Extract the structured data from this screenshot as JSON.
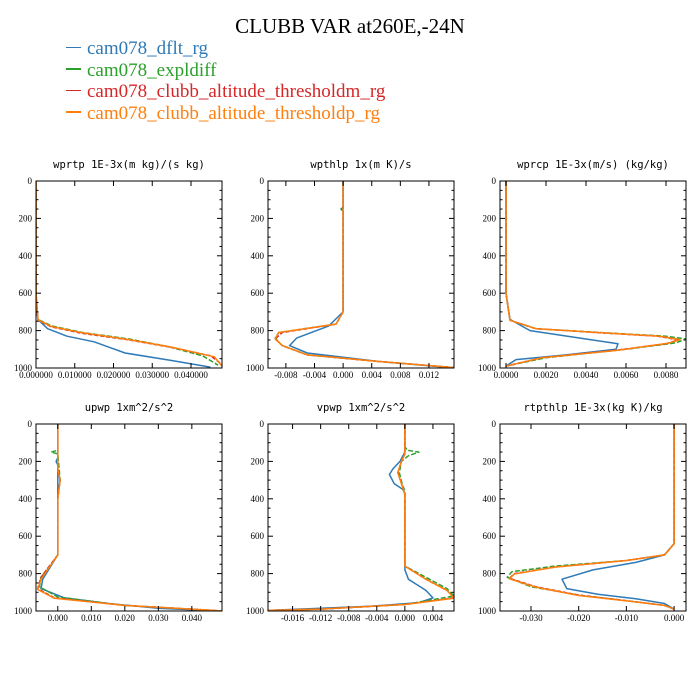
{
  "title": "CLUBB VAR at260E,-24N",
  "legend": [
    {
      "label": "cam078_dflt_rg",
      "color": "#2f7ab6",
      "dash": "solid"
    },
    {
      "label": "cam078_expldiff",
      "color": "#2ca02c",
      "dash": "dashed"
    },
    {
      "label": "cam078_clubb_altitude_thresholdm_rg",
      "color": "#d62728",
      "dash": "dashed"
    },
    {
      "label": "cam078_clubb_altitude_thresholdp_rg",
      "color": "#ff7f0e",
      "dash": "solid"
    }
  ],
  "chart_data": [
    {
      "type": "line",
      "title": "wprtp  1E-3x(m kg)/(s kg)",
      "xlim": [
        0,
        0.048
      ],
      "ylim": [
        0,
        1000
      ],
      "y_inverted": true,
      "xticks": [
        0,
        0.01,
        0.02,
        0.03,
        0.04
      ],
      "xtick_labels": [
        "0.000000",
        "0.010000",
        "0.020000",
        "0.030000",
        "0.040000"
      ],
      "yticks": [
        0,
        200,
        400,
        600,
        800,
        1000
      ],
      "series": [
        {
          "name": "cam078_dflt_rg",
          "x": [
            0,
            0,
            0.0005,
            0.003,
            0.008,
            0.015,
            0.019,
            0.023,
            0.035,
            0.045
          ],
          "y": [
            0,
            600,
            740,
            790,
            830,
            860,
            890,
            920,
            960,
            995
          ]
        },
        {
          "name": "cam078_expldiff",
          "x": [
            0,
            0,
            0.0005,
            0.004,
            0.012,
            0.024,
            0.034,
            0.043,
            0.047
          ],
          "y": [
            0,
            600,
            740,
            775,
            810,
            845,
            885,
            935,
            985
          ]
        },
        {
          "name": "cam078_clubb_altitude_thresholdm_rg",
          "x": [
            0,
            0,
            0.0005,
            0.004,
            0.012,
            0.024,
            0.035,
            0.045,
            0.048
          ],
          "y": [
            0,
            600,
            745,
            780,
            815,
            850,
            890,
            935,
            980
          ]
        },
        {
          "name": "cam078_clubb_altitude_thresholdp_rg",
          "x": [
            0,
            0,
            0.0005,
            0.004,
            0.012,
            0.024,
            0.035,
            0.046,
            0.048
          ],
          "y": [
            0,
            600,
            742,
            778,
            812,
            848,
            888,
            940,
            990
          ]
        }
      ]
    },
    {
      "type": "line",
      "title": "wpthlp  1x(m K)/s",
      "xlim": [
        -0.0105,
        0.0155
      ],
      "ylim": [
        0,
        1000
      ],
      "y_inverted": true,
      "xticks": [
        -0.008,
        -0.004,
        0,
        0.004,
        0.008,
        0.012
      ],
      "xtick_labels": [
        "-0.008",
        "-0.004",
        "0.000",
        "0.004",
        "0.008",
        "0.012"
      ],
      "yticks": [
        0,
        200,
        400,
        600,
        800,
        1000
      ],
      "series": [
        {
          "name": "cam078_dflt_rg",
          "x": [
            0,
            0,
            -0.0003,
            0,
            0,
            -0.002,
            -0.0065,
            -0.0075,
            -0.005,
            0.005,
            0.015
          ],
          "y": [
            0,
            140,
            150,
            160,
            700,
            775,
            840,
            880,
            920,
            965,
            998
          ]
        },
        {
          "name": "cam078_expldiff",
          "x": [
            0,
            0,
            -0.0003,
            0,
            0,
            -0.001,
            -0.009,
            -0.0095,
            -0.0085,
            -0.005,
            0.005,
            0.0155
          ],
          "y": [
            0,
            140,
            150,
            160,
            700,
            765,
            810,
            840,
            880,
            930,
            965,
            998
          ]
        },
        {
          "name": "cam078_clubb_altitude_thresholdm_rg",
          "x": [
            0,
            0,
            0,
            -0.001,
            -0.0085,
            -0.0095,
            -0.0085,
            -0.005,
            0.005,
            0.0155
          ],
          "y": [
            0,
            160,
            700,
            765,
            810,
            845,
            880,
            930,
            965,
            998
          ]
        },
        {
          "name": "cam078_clubb_altitude_thresholdp_rg",
          "x": [
            0,
            0,
            0,
            -0.001,
            -0.009,
            -0.0095,
            -0.0085,
            -0.005,
            0.005,
            0.0155
          ],
          "y": [
            0,
            160,
            700,
            765,
            810,
            845,
            880,
            930,
            965,
            998
          ]
        }
      ]
    },
    {
      "type": "line",
      "title": "wprcp  1E-3x(m/s) (kg/kg)",
      "xlim": [
        -0.0003,
        0.009
      ],
      "ylim": [
        0,
        1000
      ],
      "y_inverted": true,
      "xticks": [
        0,
        0.002,
        0.004,
        0.006,
        0.008
      ],
      "xtick_labels": [
        "0.0000",
        "0.0020",
        "0.0040",
        "0.0060",
        "0.0080"
      ],
      "yticks": [
        0,
        200,
        400,
        600,
        800,
        1000
      ],
      "series": [
        {
          "name": "cam078_dflt_rg",
          "x": [
            0,
            0,
            0.0002,
            0.0012,
            0.004,
            0.0056,
            0.0055,
            0.003,
            0.0005,
            0
          ],
          "y": [
            0,
            600,
            740,
            800,
            845,
            870,
            900,
            930,
            955,
            990
          ]
        },
        {
          "name": "cam078_expldiff",
          "x": [
            0,
            0,
            0.0002,
            0.0015,
            0.0055,
            0.008,
            0.009,
            0.0085,
            0.006,
            0.002,
            0
          ],
          "y": [
            0,
            600,
            745,
            790,
            815,
            830,
            845,
            865,
            900,
            945,
            990
          ]
        },
        {
          "name": "cam078_clubb_altitude_thresholdm_rg",
          "x": [
            0,
            0,
            0.0002,
            0.0015,
            0.0052,
            0.0076,
            0.0086,
            0.008,
            0.0055,
            0.0018,
            0
          ],
          "y": [
            0,
            600,
            745,
            790,
            815,
            830,
            850,
            870,
            905,
            945,
            990
          ]
        },
        {
          "name": "cam078_clubb_altitude_thresholdp_rg",
          "x": [
            0,
            0,
            0.0002,
            0.0015,
            0.0053,
            0.0077,
            0.0087,
            0.0081,
            0.0056,
            0.0018,
            0
          ],
          "y": [
            0,
            600,
            745,
            790,
            815,
            830,
            848,
            868,
            905,
            945,
            990
          ]
        }
      ]
    },
    {
      "type": "line",
      "title": "upwp  1xm^2/s^2",
      "xlim": [
        -0.0065,
        0.049
      ],
      "ylim": [
        0,
        1000
      ],
      "y_inverted": true,
      "xticks": [
        0,
        0.01,
        0.02,
        0.03,
        0.04
      ],
      "xtick_labels": [
        "0.000",
        "0.010",
        "0.020",
        "0.030",
        "0.040"
      ],
      "yticks": [
        0,
        200,
        400,
        600,
        800,
        1000
      ],
      "series": [
        {
          "name": "cam078_dflt_rg",
          "x": [
            0,
            0,
            -0.0005,
            0,
            0,
            -0.0045,
            -0.005,
            0.002,
            0.015,
            0.03,
            0.045
          ],
          "y": [
            0,
            180,
            200,
            220,
            700,
            830,
            880,
            930,
            960,
            985,
            998
          ]
        },
        {
          "name": "cam078_expldiff",
          "x": [
            0,
            0,
            -0.002,
            0,
            0.0007,
            0,
            0,
            -0.005,
            -0.0055,
            0,
            0.02,
            0.045,
            0.049
          ],
          "y": [
            0,
            140,
            150,
            160,
            300,
            400,
            700,
            820,
            870,
            925,
            970,
            995,
            1000
          ]
        },
        {
          "name": "cam078_clubb_altitude_thresholdm_rg",
          "x": [
            0,
            0,
            0,
            0.0007,
            0,
            0,
            -0.005,
            -0.006,
            -0.001,
            0.02,
            0.045,
            0.049
          ],
          "y": [
            0,
            200,
            240,
            300,
            400,
            700,
            820,
            880,
            930,
            970,
            995,
            1000
          ]
        },
        {
          "name": "cam078_clubb_altitude_thresholdp_rg",
          "x": [
            0,
            0,
            0,
            0.0007,
            0,
            0,
            -0.005,
            -0.006,
            -0.001,
            0.02,
            0.045,
            0.049
          ],
          "y": [
            0,
            200,
            240,
            300,
            400,
            700,
            830,
            885,
            932,
            970,
            995,
            1000
          ]
        }
      ]
    },
    {
      "type": "line",
      "title": "vpwp  1xm^2/s^2",
      "xlim": [
        -0.0195,
        0.007
      ],
      "ylim": [
        0,
        1000
      ],
      "y_inverted": true,
      "xticks": [
        -0.016,
        -0.012,
        -0.008,
        -0.004,
        0,
        0.004
      ],
      "xtick_labels": [
        "-0.016",
        "-0.012",
        "-0.008",
        "-0.004",
        "0.000",
        "0.004"
      ],
      "yticks": [
        0,
        200,
        400,
        600,
        800,
        1000
      ],
      "series": [
        {
          "name": "cam078_dflt_rg",
          "x": [
            0,
            0,
            -0.0007,
            -0.0017,
            -0.0022,
            -0.0015,
            -0.0003,
            0,
            0,
            0.0005,
            0.003,
            0.004,
            0.002,
            -0.005,
            -0.015,
            -0.0195
          ],
          "y": [
            0,
            150,
            200,
            240,
            270,
            320,
            350,
            370,
            780,
            830,
            890,
            930,
            955,
            975,
            990,
            997
          ]
        },
        {
          "name": "cam078_expldiff",
          "x": [
            0,
            0,
            0.0003,
            0.002,
            0.0005,
            -0.0005,
            -0.0008,
            -0.0004,
            0,
            0,
            0.003,
            0.006,
            0.007,
            0,
            -0.012,
            -0.0195
          ],
          "y": [
            0,
            120,
            140,
            150,
            170,
            200,
            260,
            320,
            360,
            760,
            820,
            880,
            920,
            965,
            990,
            997
          ]
        },
        {
          "name": "cam078_clubb_altitude_thresholdm_rg",
          "x": [
            0,
            0,
            -0.0005,
            -0.001,
            -0.0003,
            0,
            0,
            0.003,
            0.006,
            0.007,
            0,
            -0.012,
            -0.0195
          ],
          "y": [
            0,
            160,
            200,
            260,
            340,
            380,
            760,
            830,
            890,
            930,
            965,
            990,
            997
          ]
        },
        {
          "name": "cam078_clubb_altitude_thresholdp_rg",
          "x": [
            0,
            0,
            -0.0005,
            -0.001,
            -0.0003,
            0,
            0,
            0.003,
            0.006,
            0.007,
            0,
            -0.012,
            -0.0195
          ],
          "y": [
            0,
            160,
            200,
            260,
            340,
            380,
            760,
            830,
            890,
            932,
            965,
            990,
            997
          ]
        }
      ]
    },
    {
      "type": "line",
      "title": "rtpthlp  1E-3x(kg K)/kg",
      "xlim": [
        -0.0365,
        0.0025
      ],
      "ylim": [
        0,
        1000
      ],
      "y_inverted": true,
      "xticks": [
        -0.03,
        -0.02,
        -0.01,
        0
      ],
      "xtick_labels": [
        "-0.030",
        "-0.020",
        "-0.010",
        "0.000"
      ],
      "yticks": [
        0,
        200,
        400,
        600,
        800,
        1000
      ],
      "series": [
        {
          "name": "cam078_dflt_rg",
          "x": [
            0,
            0,
            -0.002,
            -0.008,
            -0.017,
            -0.0235,
            -0.0225,
            -0.016,
            -0.008,
            -0.002,
            0
          ],
          "y": [
            0,
            640,
            700,
            740,
            780,
            830,
            880,
            910,
            935,
            960,
            990
          ]
        },
        {
          "name": "cam078_expldiff",
          "x": [
            0,
            0,
            -0.002,
            -0.01,
            -0.025,
            -0.034,
            -0.035,
            -0.03,
            -0.02,
            -0.01,
            -0.002,
            0
          ],
          "y": [
            0,
            640,
            700,
            730,
            760,
            790,
            820,
            870,
            915,
            945,
            970,
            990
          ]
        },
        {
          "name": "cam078_clubb_altitude_thresholdm_rg",
          "x": [
            0,
            0,
            -0.002,
            -0.01,
            -0.025,
            -0.0335,
            -0.0345,
            -0.029,
            -0.02,
            -0.01,
            -0.002,
            0
          ],
          "y": [
            0,
            640,
            700,
            730,
            765,
            800,
            825,
            870,
            915,
            945,
            970,
            990
          ]
        },
        {
          "name": "cam078_clubb_altitude_thresholdp_rg",
          "x": [
            0,
            0,
            -0.002,
            -0.01,
            -0.025,
            -0.0335,
            -0.0345,
            -0.029,
            -0.02,
            -0.01,
            -0.002,
            0
          ],
          "y": [
            0,
            640,
            700,
            730,
            765,
            802,
            828,
            872,
            917,
            946,
            970,
            990
          ]
        }
      ]
    }
  ]
}
